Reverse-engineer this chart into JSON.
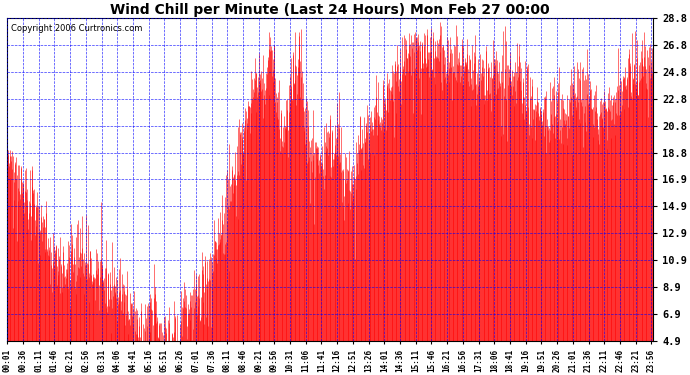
{
  "title": "Wind Chill per Minute (Last 24 Hours) Mon Feb 27 00:00",
  "copyright": "Copyright 2006 Curtronics.com",
  "yticks": [
    4.9,
    6.9,
    8.9,
    10.9,
    12.9,
    14.9,
    16.9,
    18.8,
    20.8,
    22.8,
    24.8,
    26.8,
    28.8
  ],
  "ymin": 4.9,
  "ymax": 28.8,
  "bg_color": "#ffffff",
  "plot_bg_color": "#ffffff",
  "line_color": "#ff0000",
  "grid_color": "#0000ff",
  "title_color": "#000000",
  "copyright_color": "#000000",
  "total_minutes": 1440,
  "seed": 42,
  "figwidth": 6.9,
  "figheight": 3.75,
  "dpi": 100
}
